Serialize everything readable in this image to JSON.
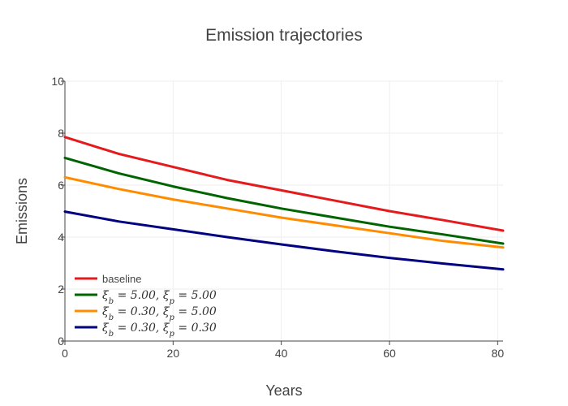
{
  "chart_data": {
    "type": "line",
    "title": "Emission trajectories",
    "xlabel": "Years",
    "ylabel": "Emissions",
    "xlim": [
      0,
      81
    ],
    "ylim": [
      0,
      10
    ],
    "xticks": [
      0,
      20,
      40,
      60,
      80
    ],
    "yticks": [
      0,
      2,
      4,
      6,
      8,
      10
    ],
    "grid": true,
    "legend_position": "bottom-left",
    "x": [
      0,
      10,
      20,
      30,
      40,
      50,
      60,
      70,
      81
    ],
    "series": [
      {
        "name": "baseline",
        "color": "#e41a1c",
        "values": [
          7.85,
          7.2,
          6.7,
          6.2,
          5.8,
          5.4,
          5.0,
          4.65,
          4.25
        ]
      },
      {
        "name": "ξ_b = 5.00, ξ_p = 5.00",
        "color": "#006400",
        "values": [
          7.05,
          6.45,
          5.95,
          5.5,
          5.1,
          4.75,
          4.4,
          4.1,
          3.75
        ]
      },
      {
        "name": "ξ_b = 0.30, ξ_p = 5.00",
        "color": "#ff8c00",
        "values": [
          6.3,
          5.85,
          5.45,
          5.1,
          4.75,
          4.45,
          4.15,
          3.85,
          3.6
        ]
      },
      {
        "name": "ξ_b = 0.30, ξ_p = 0.30",
        "color": "#000080",
        "values": [
          4.98,
          4.6,
          4.3,
          4.0,
          3.72,
          3.45,
          3.2,
          2.98,
          2.76
        ]
      }
    ]
  }
}
